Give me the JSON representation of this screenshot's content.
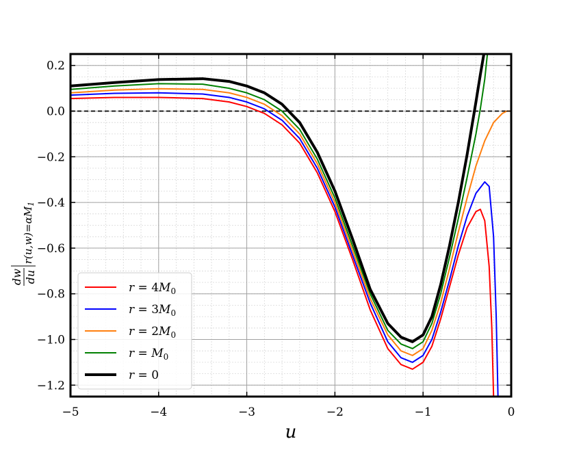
{
  "chart_data": {
    "type": "line",
    "xlabel": "u",
    "ylabel": {
      "text": "dw/du|r(u,w)=αM1",
      "frac_num": "dw",
      "frac_den": "du",
      "sub": "r(u,w)=αM",
      "sub_index": "1"
    },
    "xlim": [
      -5,
      0
    ],
    "ylim": [
      -1.25,
      0.25
    ],
    "xticks": [
      -5,
      -4,
      -3,
      -2,
      -1,
      0
    ],
    "xtick_labels": [
      "−5",
      "−4",
      "−3",
      "−2",
      "−1",
      "0"
    ],
    "yticks": [
      -1.2,
      -1.0,
      -0.8,
      -0.6,
      -0.4,
      -0.2,
      0.0,
      0.2
    ],
    "ytick_labels": [
      "−1.2",
      "−1.0",
      "−0.8",
      "−0.6",
      "−0.4",
      "−0.2",
      "0.0",
      "0.2"
    ],
    "grid": true,
    "minor_grid": true,
    "reference_line": {
      "y": 0.0,
      "style": "dashed",
      "color": "#000000"
    },
    "legend_placement": "lower-left",
    "series": [
      {
        "name": "r = 4M0",
        "label_var": "r",
        "label_eq": " = 4",
        "label_M": "M",
        "label_sub": "0",
        "color": "#ff0000",
        "width": 2,
        "x": [
          -5,
          -4.5,
          -4,
          -3.5,
          -3.2,
          -3.0,
          -2.8,
          -2.6,
          -2.4,
          -2.2,
          -2.0,
          -1.8,
          -1.6,
          -1.4,
          -1.25,
          -1.12,
          -1.0,
          -0.9,
          -0.8,
          -0.7,
          -0.6,
          -0.5,
          -0.4,
          -0.35,
          -0.3,
          -0.25,
          -0.22,
          -0.2
        ],
        "y": [
          0.055,
          0.06,
          0.06,
          0.055,
          0.04,
          0.02,
          -0.01,
          -0.06,
          -0.14,
          -0.27,
          -0.44,
          -0.65,
          -0.87,
          -1.04,
          -1.11,
          -1.13,
          -1.1,
          -1.03,
          -0.91,
          -0.77,
          -0.63,
          -0.51,
          -0.44,
          -0.43,
          -0.48,
          -0.68,
          -0.95,
          -1.25
        ]
      },
      {
        "name": "r = 3M0",
        "label_var": "r",
        "label_eq": " = 3",
        "label_M": "M",
        "label_sub": "0",
        "color": "#0000ff",
        "width": 2,
        "x": [
          -5,
          -4.5,
          -4,
          -3.5,
          -3.2,
          -3.0,
          -2.8,
          -2.6,
          -2.4,
          -2.2,
          -2.0,
          -1.8,
          -1.6,
          -1.4,
          -1.25,
          -1.12,
          -1.0,
          -0.9,
          -0.8,
          -0.7,
          -0.6,
          -0.5,
          -0.4,
          -0.3,
          -0.25,
          -0.2,
          -0.17,
          -0.15
        ],
        "y": [
          0.07,
          0.078,
          0.08,
          0.075,
          0.06,
          0.04,
          0.01,
          -0.04,
          -0.12,
          -0.25,
          -0.42,
          -0.63,
          -0.84,
          -1.01,
          -1.08,
          -1.1,
          -1.07,
          -1.0,
          -0.88,
          -0.74,
          -0.59,
          -0.46,
          -0.36,
          -0.31,
          -0.33,
          -0.55,
          -0.9,
          -1.25
        ]
      },
      {
        "name": "r = 2M0",
        "label_var": "r",
        "label_eq": " = 2",
        "label_M": "M",
        "label_sub": "0",
        "color": "#ff7f0e",
        "width": 2,
        "x": [
          -5,
          -4.5,
          -4,
          -3.5,
          -3.2,
          -3.0,
          -2.8,
          -2.6,
          -2.4,
          -2.2,
          -2.0,
          -1.8,
          -1.6,
          -1.4,
          -1.25,
          -1.12,
          -1.0,
          -0.9,
          -0.8,
          -0.7,
          -0.6,
          -0.5,
          -0.4,
          -0.3,
          -0.2,
          -0.1,
          -0.05,
          0.0
        ],
        "y": [
          0.08,
          0.092,
          0.098,
          0.095,
          0.08,
          0.06,
          0.03,
          -0.02,
          -0.1,
          -0.23,
          -0.4,
          -0.61,
          -0.82,
          -0.98,
          -1.05,
          -1.07,
          -1.04,
          -0.96,
          -0.84,
          -0.69,
          -0.53,
          -0.38,
          -0.24,
          -0.13,
          -0.05,
          -0.01,
          0.0,
          0.0
        ]
      },
      {
        "name": "r = M0",
        "label_var": "r",
        "label_eq": " = ",
        "label_M": "M",
        "label_sub": "0",
        "color": "#008000",
        "width": 2,
        "x": [
          -5,
          -4.5,
          -4,
          -3.5,
          -3.2,
          -3.0,
          -2.8,
          -2.6,
          -2.4,
          -2.2,
          -2.0,
          -1.8,
          -1.6,
          -1.4,
          -1.25,
          -1.12,
          -1.0,
          -0.9,
          -0.8,
          -0.7,
          -0.6,
          -0.5,
          -0.4,
          -0.35,
          -0.3,
          -0.27
        ],
        "y": [
          0.095,
          0.11,
          0.12,
          0.118,
          0.1,
          0.08,
          0.05,
          0.0,
          -0.08,
          -0.21,
          -0.38,
          -0.59,
          -0.8,
          -0.96,
          -1.02,
          -1.04,
          -1.01,
          -0.93,
          -0.8,
          -0.64,
          -0.47,
          -0.29,
          -0.1,
          0.01,
          0.14,
          0.25
        ]
      },
      {
        "name": "r = 0",
        "label_var": "r",
        "label_eq": " = 0",
        "label_M": "",
        "label_sub": "",
        "color": "#000000",
        "width": 4,
        "x": [
          -5,
          -4.5,
          -4,
          -3.5,
          -3.2,
          -3.0,
          -2.8,
          -2.6,
          -2.4,
          -2.2,
          -2.0,
          -1.8,
          -1.6,
          -1.4,
          -1.25,
          -1.12,
          -1.0,
          -0.9,
          -0.8,
          -0.7,
          -0.6,
          -0.5,
          -0.4,
          -0.35,
          -0.31
        ],
        "y": [
          0.11,
          0.125,
          0.138,
          0.142,
          0.13,
          0.11,
          0.08,
          0.03,
          -0.05,
          -0.18,
          -0.35,
          -0.56,
          -0.78,
          -0.93,
          -0.99,
          -1.01,
          -0.98,
          -0.9,
          -0.76,
          -0.59,
          -0.4,
          -0.19,
          0.04,
          0.16,
          0.25
        ]
      }
    ]
  }
}
